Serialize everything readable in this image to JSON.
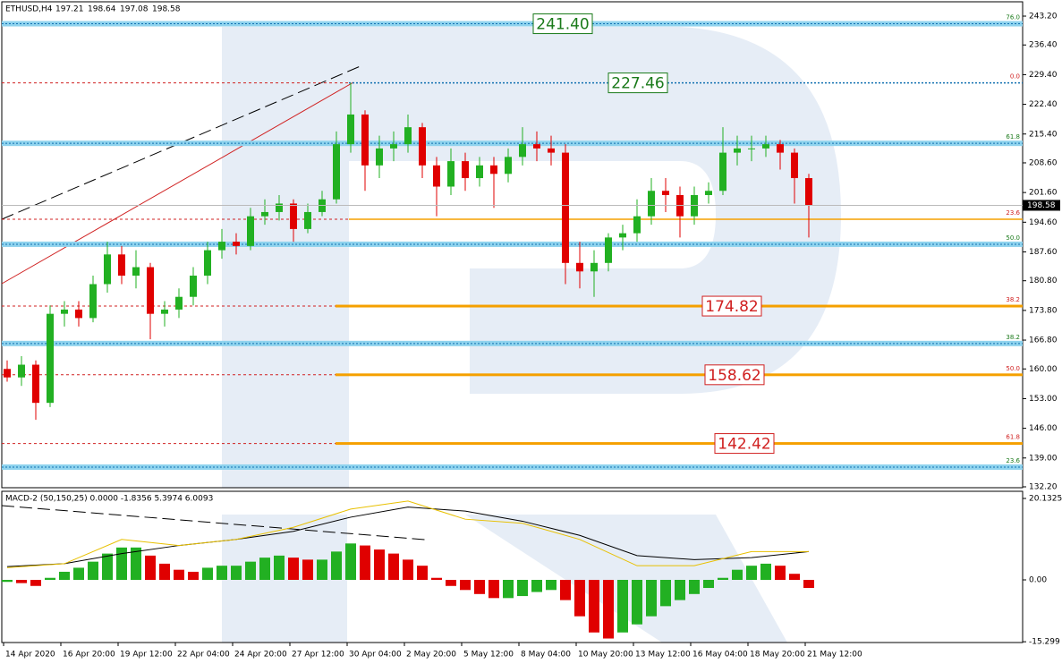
{
  "chart_data": {
    "type": "candlestick",
    "symbol": "ETHUSD,H4",
    "header_values": [
      197.21,
      198.64,
      197.08,
      198.58
    ],
    "current_price": 198.58,
    "ylim": [
      131.99,
      246.58
    ],
    "yticks": [
      {
        "value": 243.2,
        "label": "243.20"
      },
      {
        "value": 236.4,
        "label": "236.40"
      },
      {
        "value": 229.4,
        "label": "229.40"
      },
      {
        "value": 222.4,
        "label": "222.40"
      },
      {
        "value": 215.4,
        "label": "215.40"
      },
      {
        "value": 208.6,
        "label": "208.60"
      },
      {
        "value": 201.6,
        "label": "201.60"
      },
      {
        "value": 194.6,
        "label": "194.60"
      },
      {
        "value": 187.6,
        "label": "187.60"
      },
      {
        "value": 180.8,
        "label": "180.80"
      },
      {
        "value": 173.8,
        "label": "173.80"
      },
      {
        "value": 166.8,
        "label": "166.80"
      },
      {
        "value": 160,
        "label": "160.00"
      },
      {
        "value": 153,
        "label": "153.00"
      },
      {
        "value": 146,
        "label": "146.00"
      },
      {
        "value": 139,
        "label": "139.00"
      },
      {
        "value": 132.2,
        "label": "132.20"
      }
    ],
    "xticks": [
      "14 Apr 2020",
      "16 Apr 20:00",
      "19 Apr 12:00",
      "22 Apr 04:00",
      "24 Apr 20:00",
      "27 Apr 12:00",
      "30 Apr 04:00",
      "2 May 20:00",
      "5 May 12:00",
      "8 May 04:00",
      "10 May 20:00",
      "13 May 12:00",
      "16 May 04:00",
      "18 May 20:00",
      "21 May 12:00"
    ],
    "up_color": "#22b022",
    "down_color": "#e00000",
    "open": [
      160,
      158,
      161,
      152,
      173,
      174,
      172,
      180,
      187,
      182,
      184,
      173,
      174,
      177,
      182,
      188,
      190,
      189,
      196,
      197,
      199,
      193,
      197,
      200,
      213,
      220,
      208,
      212,
      213,
      217,
      208,
      203,
      209,
      205,
      208,
      206,
      210,
      213,
      212,
      211,
      185,
      183,
      185,
      191,
      192,
      196,
      202,
      201,
      196,
      201,
      202,
      211,
      212,
      212,
      213,
      211,
      205
    ],
    "high": [
      162,
      163,
      162,
      175,
      176,
      176,
      182,
      190,
      189,
      188,
      185,
      176,
      179,
      184,
      190,
      193,
      192,
      198,
      200,
      201,
      200,
      199,
      202,
      216,
      227.46,
      221,
      215,
      216,
      220,
      218,
      210,
      212,
      211,
      210,
      210,
      212,
      217,
      216,
      215,
      213,
      190,
      188,
      192,
      194,
      200,
      205,
      205,
      203,
      203,
      204,
      217,
      215,
      215,
      215,
      214,
      212,
      206
    ],
    "low": [
      157,
      156,
      148,
      151,
      170,
      170,
      171,
      178,
      180,
      179,
      167,
      170,
      172,
      175,
      180,
      186,
      187,
      188,
      194,
      195,
      190,
      192,
      196,
      199,
      211,
      202,
      205,
      209,
      211,
      205,
      196,
      201,
      202,
      203,
      198,
      204,
      208,
      209,
      208,
      180,
      179,
      177,
      183,
      188,
      190,
      194,
      197,
      191,
      194,
      199,
      201,
      208,
      209,
      210,
      207,
      199,
      191
    ],
    "close": [
      158,
      161,
      152,
      173,
      174,
      172,
      180,
      187,
      182,
      184,
      173,
      174,
      177,
      182,
      188,
      190,
      189,
      196,
      197,
      199,
      193,
      197,
      200,
      213,
      220,
      208,
      212,
      213,
      217,
      208,
      203,
      209,
      205,
      208,
      206,
      210,
      213,
      212,
      211,
      185,
      183,
      185,
      191,
      192,
      196,
      202,
      201,
      196,
      201,
      202,
      211,
      212,
      212,
      213,
      211,
      205,
      198.58
    ],
    "levels": [
      {
        "value": 241.4,
        "fib": "76.0",
        "box": "241.40",
        "color": "#1ea7d8",
        "box_color": "#1a7a1a"
      },
      {
        "value": 227.46,
        "fib": "0.0",
        "box": "227.46",
        "color": "#d02020",
        "box_color": "#1a7a1a"
      },
      {
        "value": 213.2,
        "fib": "61.8",
        "color": "#1ea7d8"
      },
      {
        "value": 195.3,
        "fib": "23.6",
        "color": "#d02020"
      },
      {
        "value": 189.4,
        "fib": "50.0",
        "color": "#1ea7d8"
      },
      {
        "value": 174.82,
        "fib": "38.2",
        "box": "174.82",
        "color": "#f5a000",
        "box_color": "#d02020"
      },
      {
        "value": 166,
        "fib": "38.2",
        "color": "#1ea7d8"
      },
      {
        "value": 158.62,
        "fib": "50.0",
        "box": "158.62",
        "color": "#f5a000",
        "box_color": "#d02020"
      },
      {
        "value": 142.42,
        "fib": "61.8",
        "box": "142.42",
        "color": "#f5a000",
        "box_color": "#d02020"
      },
      {
        "value": 136.85,
        "fib": "23.6",
        "color": "#1ea7d8"
      }
    ],
    "macd": {
      "title": "MACD-2 (50,150,25) 0.0000 -1.8356 5.3974 6.0093",
      "ylim": [
        -15.49,
        21.9
      ],
      "yticks": [
        20.1325,
        {
          "value": 0,
          "label": "0.00"
        },
        -15.299
      ],
      "histogram": [
        -0.5,
        -0.8,
        -1.5,
        0.5,
        2,
        3,
        4.5,
        6.5,
        8,
        8,
        6,
        4,
        2.5,
        2,
        3,
        3.5,
        3.5,
        4.5,
        5.5,
        6,
        5.5,
        5,
        5,
        7,
        9,
        8.5,
        7.5,
        6.5,
        5,
        3.5,
        0.5,
        -1.5,
        -2.5,
        -3.5,
        -4.5,
        -4.5,
        -4,
        -3,
        -2.5,
        -5,
        -9,
        -13,
        -14.5,
        -13,
        -11,
        -9,
        -6.5,
        -5,
        -3.5,
        -2,
        0.5,
        2.5,
        3.5,
        4,
        3.5,
        1.5,
        -2
      ],
      "x": [
        0,
        4,
        8,
        12,
        16,
        20,
        24,
        28,
        32,
        36,
        40,
        44,
        48,
        52,
        56
      ],
      "series": [
        {
          "color": "#000000",
          "values": [
            3.3,
            4,
            6.5,
            8.5,
            10,
            12,
            15.5,
            18,
            17,
            14.5,
            11,
            6,
            5,
            5.5,
            7
          ]
        },
        {
          "color": "#e8c000",
          "values": [
            3,
            4,
            10,
            8.5,
            10,
            13,
            17.5,
            19.5,
            15,
            14,
            10,
            3.5,
            3.5,
            7,
            7
          ]
        }
      ]
    }
  }
}
